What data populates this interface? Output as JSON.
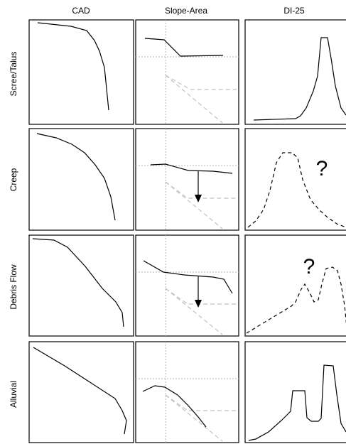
{
  "columns": [
    {
      "id": "cad",
      "label": "CAD"
    },
    {
      "id": "slope-area",
      "label": "Slope-Area"
    },
    {
      "id": "di25",
      "label": "DI-25"
    }
  ],
  "rows": [
    {
      "id": "scree-talus",
      "label": "Scree/Talus",
      "question": ""
    },
    {
      "id": "creep",
      "label": "Creep",
      "question": "?"
    },
    {
      "id": "debris-flow",
      "label": "Debris Flow",
      "question": "?"
    },
    {
      "id": "alluvial",
      "label": "Alluvial",
      "question": ""
    }
  ],
  "colors": {
    "curve": "#000000",
    "guide": "#b5b5b5"
  }
}
